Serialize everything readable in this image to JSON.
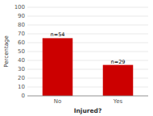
{
  "chart_data": {
    "type": "bar",
    "categories": [
      "No",
      "Yes"
    ],
    "values": [
      65.1,
      34.9
    ],
    "annotations": [
      "n=54",
      "n=29"
    ],
    "color": "#cc0000",
    "xlabel": "Injured?",
    "ylabel": "Percentage",
    "ylim": [
      0,
      100
    ],
    "yticks": [
      0,
      10,
      20,
      30,
      40,
      50,
      60,
      70,
      80,
      90,
      100
    ],
    "grid": true
  }
}
